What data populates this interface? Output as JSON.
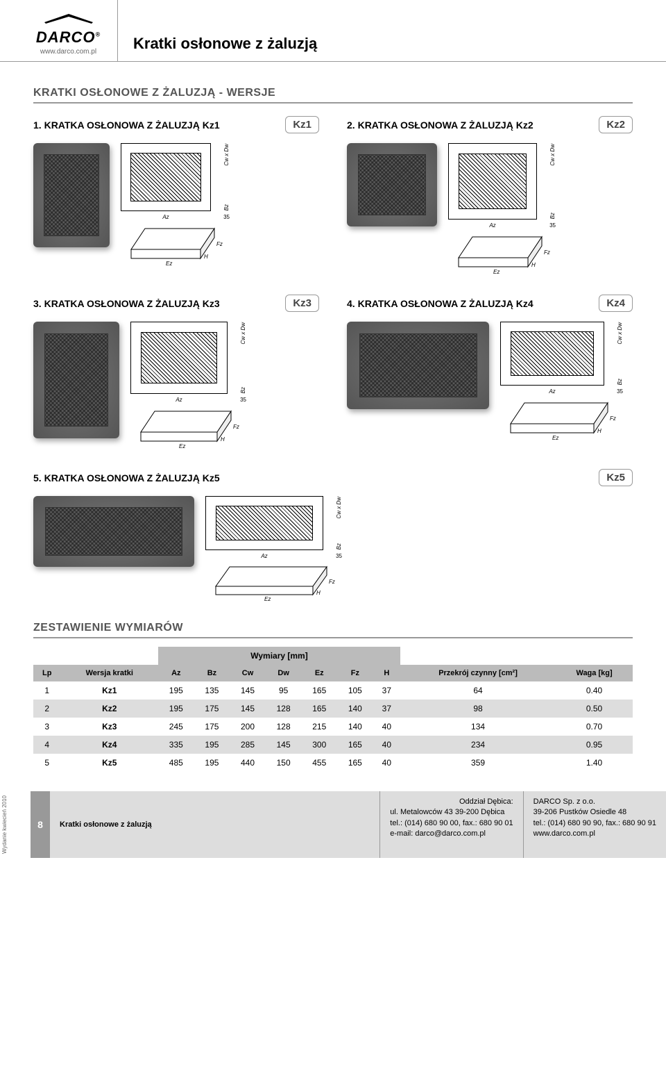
{
  "brand": {
    "name": "DARCO",
    "registered": "®",
    "url": "www.darco.com.pl"
  },
  "page_title": "Kratki osłonowe z żaluzją",
  "section_heading": "KRATKI OSŁONOWE Z ŻALUZJĄ - WERSJE",
  "variants": [
    {
      "num": "1.",
      "title": "KRATKA OSŁONOWA Z ŻALUZJĄ Kz1",
      "code": "Kz1",
      "aspect": "tall"
    },
    {
      "num": "2.",
      "title": "KRATKA OSŁONOWA Z ŻALUZJĄ Kz2",
      "code": "Kz2",
      "aspect": "square"
    },
    {
      "num": "3.",
      "title": "KRATKA OSŁONOWA Z ŻALUZJĄ Kz3",
      "code": "Kz3",
      "aspect": "tall"
    },
    {
      "num": "4.",
      "title": "KRATKA OSŁONOWA Z ŻALUZJĄ Kz4",
      "code": "Kz4",
      "aspect": "wide"
    },
    {
      "num": "5.",
      "title": "KRATKA OSŁONOWA Z ŻALUZJĄ Kz5",
      "code": "Kz5",
      "aspect": "xwide"
    }
  ],
  "dim_labels": {
    "az": "Az",
    "bz": "Bz",
    "cwdw": "Cw x Dw",
    "ez": "Ez",
    "fz": "Fz",
    "h": "H",
    "d35": "35"
  },
  "table": {
    "heading": "ZESTAWIENIE WYMIARÓW",
    "wymiary_header": "Wymiary [mm]",
    "columns": [
      "Lp",
      "Wersja kratki",
      "Az",
      "Bz",
      "Cw",
      "Dw",
      "Ez",
      "Fz",
      "H",
      "Przekrój czynny [cm²]",
      "Waga [kg]"
    ],
    "rows": [
      [
        "1",
        "Kz1",
        "195",
        "135",
        "145",
        "95",
        "165",
        "105",
        "37",
        "64",
        "0.40"
      ],
      [
        "2",
        "Kz2",
        "195",
        "175",
        "145",
        "128",
        "165",
        "140",
        "37",
        "98",
        "0.50"
      ],
      [
        "3",
        "Kz3",
        "245",
        "175",
        "200",
        "128",
        "215",
        "140",
        "40",
        "134",
        "0.70"
      ],
      [
        "4",
        "Kz4",
        "335",
        "195",
        "285",
        "145",
        "300",
        "165",
        "40",
        "234",
        "0.95"
      ],
      [
        "5",
        "Kz5",
        "485",
        "195",
        "440",
        "150",
        "455",
        "165",
        "40",
        "359",
        "1.40"
      ]
    ]
  },
  "footer": {
    "edition": "Wydanie kwiecień 2010",
    "page_number": "8",
    "title": "Kratki osłonowe z żaluzją",
    "addr1": {
      "l1": "Oddział Dębica:",
      "l2": "ul. Metalowców 43   39-200 Dębica",
      "l3": "tel.: (014) 680 90 00, fax.: 680 90 01",
      "l4": "e-mail: darco@darco.com.pl"
    },
    "addr2": {
      "l1": "DARCO Sp. z o.o.",
      "l2": "39-206 Pustków Osiedle 48",
      "l3": "tel.: (014) 680 90 90, fax.: 680 90 91",
      "l4": "www.darco.com.pl"
    }
  },
  "colors": {
    "heading_gray": "#555555",
    "rule_gray": "#999999",
    "table_header_bg": "#bbbbbb",
    "table_row_even": "#dddddd",
    "footer_bg": "#dddddd",
    "page_num_bg": "#999999"
  }
}
